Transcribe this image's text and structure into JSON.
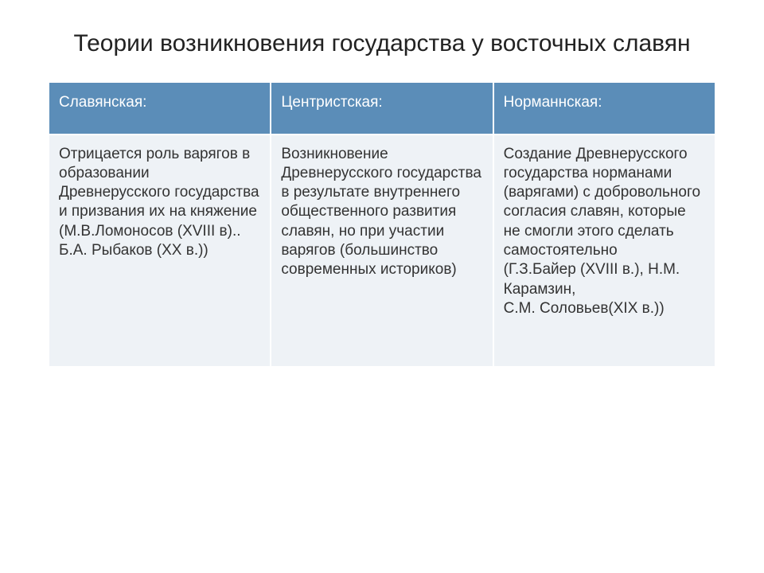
{
  "title": "Теории возникновения государства у восточных славян",
  "table": {
    "header_bg": "#5b8db8",
    "header_color": "#ffffff",
    "cell_bg": "#eef2f6",
    "cell_color": "#333333",
    "border_color": "#ffffff",
    "header_fontsize": 19,
    "cell_fontsize": 19,
    "columns": [
      {
        "label": "Славянская:"
      },
      {
        "label": "Центристская:"
      },
      {
        "label": "Норманнская:"
      }
    ],
    "row": [
      "Отрицается роль варягов в образовании Древнерусского государства и призвания их на княжение (М.В.Ломоносов (XVIII в)..\nБ.А. Рыбаков (XX в.))",
      "Возникновение Древнерусского государства в результате внутреннего общественного развития славян, но при участии варягов (большинство современных историков)",
      "Создание Древнерусского государства норманами (варягами) с добровольного согласия славян, которые не смогли этого сделать самостоятельно\n(Г.З.Байер (XVIII в.), Н.М. Карамзин,\n С.М. Соловьев(XIX в.))"
    ]
  }
}
